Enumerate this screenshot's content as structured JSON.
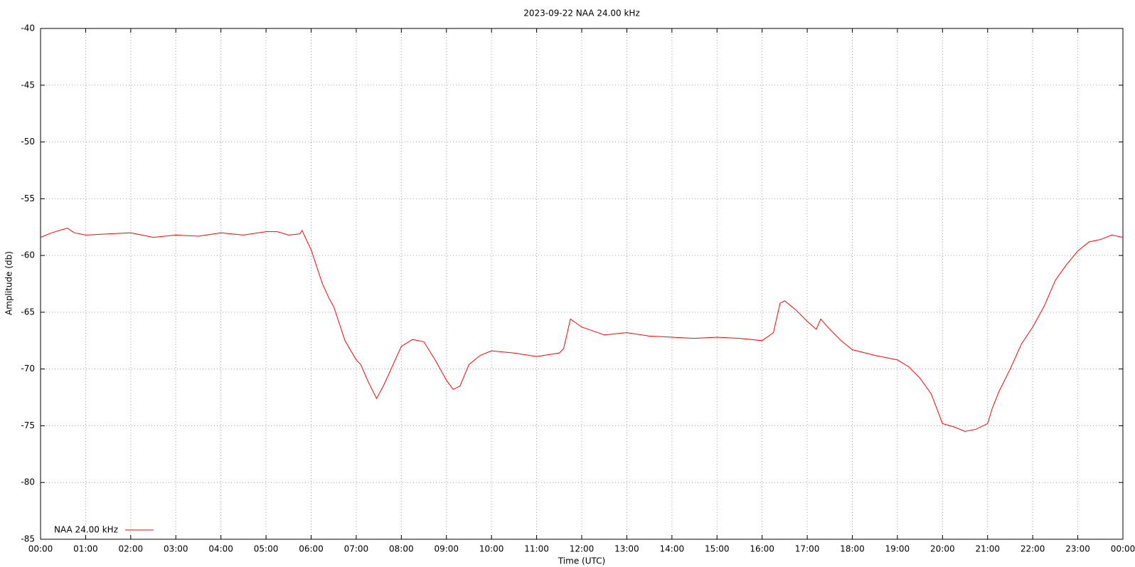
{
  "chart_data": {
    "type": "line",
    "title": "2023-09-22 NAA 24.00 kHz",
    "x_label": "Time (UTC)",
    "y_label": "Amplitude (db)",
    "x": [
      0,
      0.25,
      0.5,
      0.6,
      0.75,
      1,
      1.5,
      2,
      2.25,
      2.5,
      3,
      3.5,
      4,
      4.5,
      5,
      5.25,
      5.5,
      5.75,
      5.8,
      6,
      6.25,
      6.4,
      6.5,
      6.75,
      7,
      7.1,
      7.25,
      7.45,
      7.6,
      7.75,
      8,
      8.25,
      8.5,
      8.75,
      9,
      9.15,
      9.3,
      9.5,
      9.75,
      10,
      10.5,
      11,
      11.5,
      11.6,
      11.75,
      12,
      12.5,
      13,
      13.5,
      14,
      14.5,
      15,
      15.5,
      16,
      16.25,
      16.4,
      16.5,
      16.75,
      17,
      17.2,
      17.3,
      17.5,
      17.75,
      18,
      18.5,
      19,
      19.25,
      19.5,
      19.75,
      20,
      20.25,
      20.5,
      20.75,
      21,
      21.1,
      21.25,
      21.5,
      21.75,
      22,
      22.25,
      22.5,
      22.75,
      23,
      23.25,
      23.5,
      23.75,
      24
    ],
    "series": [
      {
        "name": "NAA 24.00 kHz",
        "color": "#ff0000",
        "values": [
          -58.4,
          -58.0,
          -57.7,
          -57.6,
          -58.0,
          -58.2,
          -58.1,
          -58.0,
          -58.2,
          -58.4,
          -58.2,
          -58.3,
          -58.0,
          -58.2,
          -57.9,
          -57.9,
          -58.2,
          -58.1,
          -57.8,
          -59.5,
          -62.5,
          -63.8,
          -64.5,
          -67.5,
          -69.2,
          -69.6,
          -71.0,
          -72.6,
          -71.5,
          -70.2,
          -68.0,
          -67.4,
          -67.6,
          -69.2,
          -71.0,
          -71.8,
          -71.5,
          -69.6,
          -68.8,
          -68.4,
          -68.6,
          -68.9,
          -68.6,
          -68.2,
          -65.6,
          -66.3,
          -67.0,
          -66.8,
          -67.1,
          -67.2,
          -67.3,
          -67.2,
          -67.3,
          -67.5,
          -66.8,
          -64.2,
          -64.0,
          -64.8,
          -65.8,
          -66.5,
          -65.6,
          -66.5,
          -67.5,
          -68.3,
          -68.8,
          -69.2,
          -69.8,
          -70.8,
          -72.2,
          -74.8,
          -75.1,
          -75.5,
          -75.3,
          -74.8,
          -73.5,
          -72.0,
          -70.0,
          -67.8,
          -66.3,
          -64.5,
          -62.2,
          -60.8,
          -59.6,
          -58.8,
          -58.6,
          -58.2,
          -58.4
        ]
      }
    ],
    "xlim": [
      0,
      24
    ],
    "xticks": [
      {
        "value": 0,
        "label": "00:00"
      },
      {
        "value": 1,
        "label": "01:00"
      },
      {
        "value": 2,
        "label": "02:00"
      },
      {
        "value": 3,
        "label": "03:00"
      },
      {
        "value": 4,
        "label": "04:00"
      },
      {
        "value": 5,
        "label": "05:00"
      },
      {
        "value": 6,
        "label": "06:00"
      },
      {
        "value": 7,
        "label": "07:00"
      },
      {
        "value": 8,
        "label": "08:00"
      },
      {
        "value": 9,
        "label": "09:00"
      },
      {
        "value": 10,
        "label": "10:00"
      },
      {
        "value": 11,
        "label": "11:00"
      },
      {
        "value": 12,
        "label": "12:00"
      },
      {
        "value": 13,
        "label": "13:00"
      },
      {
        "value": 14,
        "label": "14:00"
      },
      {
        "value": 15,
        "label": "15:00"
      },
      {
        "value": 16,
        "label": "16:00"
      },
      {
        "value": 17,
        "label": "17:00"
      },
      {
        "value": 18,
        "label": "18:00"
      },
      {
        "value": 19,
        "label": "19:00"
      },
      {
        "value": 20,
        "label": "20:00"
      },
      {
        "value": 21,
        "label": "21:00"
      },
      {
        "value": 22,
        "label": "22:00"
      },
      {
        "value": 23,
        "label": "23:00"
      },
      {
        "value": 24,
        "label": "00:00"
      }
    ],
    "ylim": [
      -85,
      -40
    ],
    "yticks": [
      -85,
      -80,
      -75,
      -70,
      -65,
      -60,
      -55,
      -50,
      -45,
      -40
    ],
    "grid": true,
    "legend": "bottom left"
  }
}
